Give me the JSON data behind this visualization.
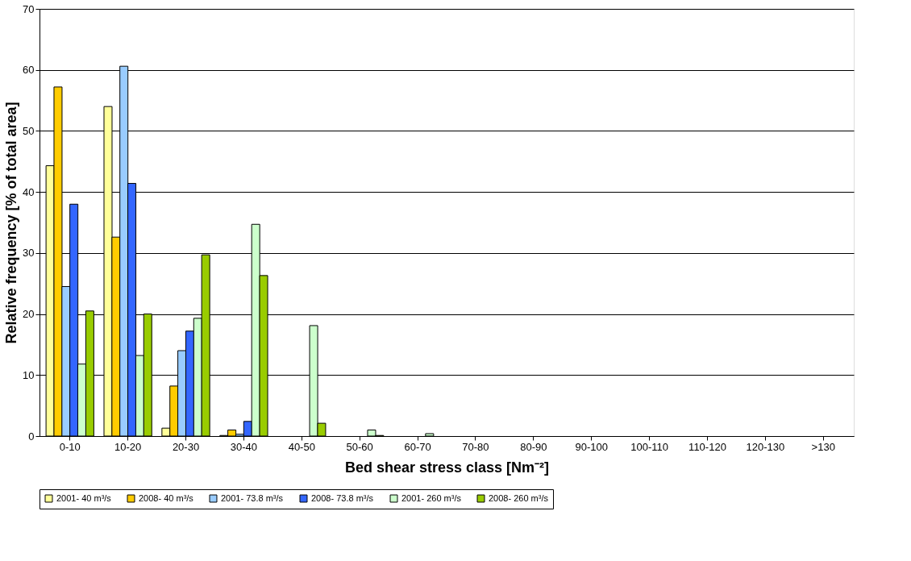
{
  "chart_data": {
    "type": "bar",
    "xlabel": "Bed shear stress class [Nm⁻²]",
    "ylabel": "Relative frequency  [% of total area]",
    "categories": [
      "0-10",
      "10-20",
      "20-30",
      "30-40",
      "40-50",
      "50-60",
      "60-70",
      "70-80",
      "80-90",
      "90-100",
      "100-110",
      "110-120",
      "120-130",
      ">130"
    ],
    "series": [
      {
        "name": "2001- 40 m³/s",
        "color": "#ffff99",
        "values": [
          44.3,
          54.0,
          1.3,
          0.1,
          0,
          0,
          0,
          0,
          0,
          0,
          0,
          0,
          0,
          0
        ]
      },
      {
        "name": "2008- 40 m³/s",
        "color": "#ffcc00",
        "values": [
          57.2,
          32.6,
          8.2,
          1.0,
          0,
          0,
          0,
          0,
          0,
          0,
          0,
          0,
          0,
          0
        ]
      },
      {
        "name": "2001- 73.8 m³/s",
        "color": "#99ccff",
        "values": [
          24.5,
          60.6,
          14.0,
          0.3,
          0,
          0,
          0,
          0,
          0,
          0,
          0,
          0,
          0,
          0
        ]
      },
      {
        "name": "2008- 73.8 m³/s",
        "color": "#3366ff",
        "values": [
          38.0,
          41.4,
          17.2,
          2.4,
          0,
          0,
          0,
          0,
          0,
          0,
          0,
          0,
          0,
          0
        ]
      },
      {
        "name": "2001- 260 m³/s",
        "color": "#ccffcc",
        "values": [
          11.8,
          13.2,
          19.3,
          34.7,
          18.1,
          1.0,
          0.4,
          0,
          0,
          0,
          0,
          0,
          0,
          0
        ]
      },
      {
        "name": "2008- 260 m³/s",
        "color": "#99cc00",
        "values": [
          20.5,
          20.0,
          29.7,
          26.3,
          2.1,
          0.1,
          0,
          0,
          0,
          0,
          0,
          0,
          0,
          0
        ]
      }
    ],
    "ylim": [
      0,
      70
    ],
    "yticks": [
      0,
      10,
      20,
      30,
      40,
      50,
      60,
      70
    ],
    "grid": "y",
    "legend": "bottom"
  }
}
